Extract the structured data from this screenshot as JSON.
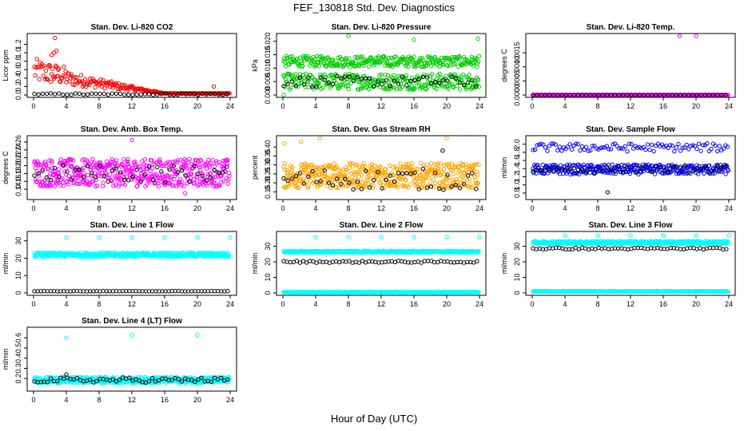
{
  "figure": {
    "title": "FEF_130818  Std. Dev. Diagnostics",
    "xlabel": "Hour of Day (UTC)"
  },
  "colors": {
    "black": "#000000",
    "red": "#ff0000",
    "green": "#00cc00",
    "magenta": "#ff00ff",
    "orange": "#ffa500",
    "blue": "#0000ff",
    "cyan": "#00ffff"
  },
  "chart_data": [
    {
      "type": "scatter",
      "title": "Stan. Dev. Li-820 CO2",
      "ylabel": "Licor ppm",
      "xlim": [
        0,
        24
      ],
      "xticks": [
        "0",
        "4",
        "8",
        "12",
        "16",
        "20",
        "24"
      ],
      "ylim": [
        0,
        1.4
      ],
      "yticks": [
        "0.0",
        "0.2",
        "0.4",
        "0.6",
        "0.8",
        "1.0",
        "1.2"
      ],
      "series": [
        {
          "color": "red",
          "pattern": "decay",
          "base": 0.25,
          "spread": 0.45,
          "decay_to_hour": 16,
          "tail": 0.04,
          "highlights": [
            [
              2.2,
              0.95
            ],
            [
              2.5,
              1.0
            ],
            [
              2.8,
              1.05
            ],
            [
              2.6,
              1.35
            ],
            [
              3.0,
              0.6
            ],
            [
              22,
              0.2
            ]
          ]
        },
        {
          "color": "black",
          "pattern": "flat",
          "base": 0.02,
          "spread": 0.02,
          "step": 0.5
        }
      ]
    },
    {
      "type": "scatter",
      "title": "Stan. Dev. Li-820 Pressure",
      "ylabel": "kPa",
      "xlim": [
        0,
        24
      ],
      "xticks": [
        "0",
        "4",
        "8",
        "12",
        "16",
        "20",
        "24"
      ],
      "ylim": [
        0,
        0.022
      ],
      "yticks": [
        "0.000",
        "0.005",
        "0.010",
        "0.015",
        "0.020"
      ],
      "series": [
        {
          "color": "green",
          "pattern": "flat",
          "base": 0.0125,
          "spread": 0.002,
          "step": 0.08,
          "highlights": [
            [
              8,
              0.022
            ],
            [
              16,
              0.0205
            ],
            [
              23.8,
              0.021
            ]
          ]
        },
        {
          "color": "green",
          "pattern": "flat",
          "base": 0.005,
          "spread": 0.003,
          "step": 0.08,
          "highlights": [
            [
              0.1,
              0.0
            ]
          ]
        },
        {
          "color": "black",
          "pattern": "flat",
          "base": 0.005,
          "spread": 0.002,
          "step": 0.5
        }
      ]
    },
    {
      "type": "scatter",
      "title": "Stan. Dev. Li-820 Temp.",
      "ylabel": "degrees C",
      "xlim": [
        0,
        24
      ],
      "xticks": [
        "0",
        "4",
        "8",
        "12",
        "16",
        "20",
        "24"
      ],
      "ylim": [
        0,
        0.0021
      ],
      "yticks": [
        "0.0000",
        "0.0005",
        "0.0010",
        "0.0015"
      ],
      "series": [
        {
          "color": "magenta",
          "pattern": "flat",
          "base": 0.0,
          "spread": 0.0,
          "step": 0.1,
          "highlights": [
            [
              18,
              0.0021
            ],
            [
              20,
              0.0021
            ]
          ]
        },
        {
          "color": "black",
          "pattern": "flat",
          "base": 0.0,
          "spread": 0.0,
          "step": 0.5
        }
      ]
    },
    {
      "type": "scatter",
      "title": "Stan. Dev. Amb. Box Temp.",
      "ylabel": "degrees C",
      "xlim": [
        0,
        24
      ],
      "xticks": [
        "0",
        "4",
        "8",
        "12",
        "16",
        "20",
        "24"
      ],
      "ylim": [
        0.12,
        0.27
      ],
      "yticks": [
        "0.14",
        "0.16",
        "0.18",
        "0.20",
        "0.22",
        "0.24",
        "0.26"
      ],
      "series": [
        {
          "color": "magenta",
          "pattern": "flat",
          "base": 0.182,
          "spread": 0.035,
          "step": 0.05,
          "highlights": [
            [
              12,
              0.265
            ],
            [
              18.5,
              0.13
            ]
          ]
        },
        {
          "color": "black",
          "pattern": "flat",
          "base": 0.18,
          "spread": 0.022,
          "step": 0.5
        }
      ]
    },
    {
      "type": "scatter",
      "title": "Stan. Dev. Gas Stream RH",
      "ylabel": "percent",
      "xlim": [
        0,
        24
      ],
      "xticks": [
        "0",
        "4",
        "8",
        "12",
        "16",
        "20",
        "24"
      ],
      "ylim": [
        0.12,
        0.45
      ],
      "yticks": [
        "0.15",
        "0.20",
        "0.25",
        "0.30",
        "0.35",
        "0.40"
      ],
      "series": [
        {
          "color": "orange",
          "pattern": "flat",
          "base": 0.24,
          "spread": 0.07,
          "step": 0.05,
          "highlights": [
            [
              0.2,
              0.42
            ],
            [
              2.2,
              0.43
            ],
            [
              4.5,
              0.45
            ],
            [
              20,
              0.45
            ]
          ]
        },
        {
          "color": "black",
          "pattern": "flat",
          "base": 0.22,
          "spread": 0.06,
          "step": 0.5,
          "highlights": [
            [
              19.5,
              0.38
            ]
          ]
        }
      ]
    },
    {
      "type": "scatter",
      "title": "Stan. Dev. Sample Flow",
      "ylabel": "ml/min",
      "xlim": [
        0,
        24
      ],
      "xticks": [
        "0",
        "4",
        "8",
        "12",
        "16",
        "20",
        "24"
      ],
      "ylim": [
        0.7,
        2.15
      ],
      "yticks": [
        "0.8",
        "1.0",
        "1.2",
        "1.4",
        "1.6",
        "1.8",
        "2.0"
      ],
      "series": [
        {
          "color": "blue",
          "pattern": "flat",
          "base": 1.38,
          "spread": 0.12,
          "step": 0.08
        },
        {
          "color": "blue",
          "pattern": "flat",
          "base": 1.92,
          "spread": 0.1,
          "step": 0.25
        },
        {
          "color": "black",
          "pattern": "flat",
          "base": 1.38,
          "spread": 0.08,
          "step": 0.5,
          "highlights": [
            [
              9.2,
              0.82
            ]
          ]
        }
      ]
    },
    {
      "type": "scatter",
      "title": "Stan. Dev. Line 1 Flow",
      "ylabel": "ml/min",
      "xlim": [
        0,
        24
      ],
      "xticks": [
        "0",
        "4",
        "8",
        "12",
        "16",
        "20",
        "24"
      ],
      "ylim": [
        0,
        34
      ],
      "yticks": [
        "0",
        "10",
        "20",
        "30"
      ],
      "series": [
        {
          "color": "cyan",
          "pattern": "flat",
          "base": 22,
          "spread": 1.2,
          "step": 0.05,
          "highlights": [
            [
              4,
              32
            ],
            [
              8,
              32
            ],
            [
              12,
              32
            ],
            [
              16,
              32
            ],
            [
              20,
              32
            ],
            [
              24,
              32
            ]
          ]
        },
        {
          "color": "black",
          "pattern": "flat",
          "base": 1,
          "spread": 0.1,
          "step": 0.4
        }
      ]
    },
    {
      "type": "scatter",
      "title": "Stan. Dev. Line 2 Flow",
      "ylabel": "ml/min",
      "xlim": [
        0,
        24
      ],
      "xticks": [
        "0",
        "4",
        "8",
        "12",
        "16",
        "20",
        "24"
      ],
      "ylim": [
        0,
        38
      ],
      "yticks": [
        "0",
        "10",
        "20",
        "30"
      ],
      "series": [
        {
          "color": "cyan",
          "pattern": "flat",
          "base": 26.5,
          "spread": 0.6,
          "step": 0.05,
          "highlights": [
            [
              4,
              36
            ],
            [
              8,
              36
            ],
            [
              12,
              36
            ],
            [
              16,
              36
            ],
            [
              20,
              36
            ],
            [
              24,
              36
            ]
          ]
        },
        {
          "color": "cyan",
          "pattern": "flat",
          "base": 0.5,
          "spread": 0.1,
          "step": 0.05
        },
        {
          "color": "black",
          "pattern": "flat",
          "base": 20,
          "spread": 0.6,
          "step": 0.4
        }
      ]
    },
    {
      "type": "scatter",
      "title": "Stan. Dev. Line 3 Flow",
      "ylabel": "ml/min",
      "xlim": [
        0,
        24
      ],
      "xticks": [
        "0",
        "4",
        "8",
        "12",
        "16",
        "20",
        "24"
      ],
      "ylim": [
        0,
        38
      ],
      "yticks": [
        "0",
        "10",
        "20",
        "30"
      ],
      "series": [
        {
          "color": "cyan",
          "pattern": "flat",
          "base": 32.5,
          "spread": 0.9,
          "step": 0.05,
          "highlights": [
            [
              4,
              37
            ],
            [
              8,
              37
            ],
            [
              12,
              37
            ],
            [
              16,
              37
            ],
            [
              20,
              37
            ],
            [
              24,
              37
            ]
          ]
        },
        {
          "color": "cyan",
          "pattern": "flat",
          "base": 1.0,
          "spread": 0.2,
          "step": 0.05
        },
        {
          "color": "black",
          "pattern": "flat",
          "base": 28.5,
          "spread": 0.6,
          "step": 0.4
        }
      ]
    },
    {
      "type": "scatter",
      "title": "Stan. Dev. Line 4 (LT) Flow",
      "ylabel": "ml/min",
      "xlim": [
        0,
        24
      ],
      "xticks": [
        "0",
        "4",
        "8",
        "12",
        "16",
        "20",
        "24"
      ],
      "ylim": [
        0.1,
        0.68
      ],
      "yticks": [
        "0.2",
        "0.3",
        "0.4",
        "0.5",
        "0.6"
      ],
      "series": [
        {
          "color": "cyan",
          "pattern": "flat",
          "base": 0.185,
          "spread": 0.03,
          "step": 0.05,
          "highlights": [
            [
              4,
              0.6
            ],
            [
              12,
              0.63
            ],
            [
              20,
              0.63
            ]
          ]
        },
        {
          "color": "black",
          "pattern": "flat",
          "base": 0.185,
          "spread": 0.025,
          "step": 0.4,
          "highlights": [
            [
              4,
              0.24
            ]
          ]
        }
      ]
    }
  ]
}
